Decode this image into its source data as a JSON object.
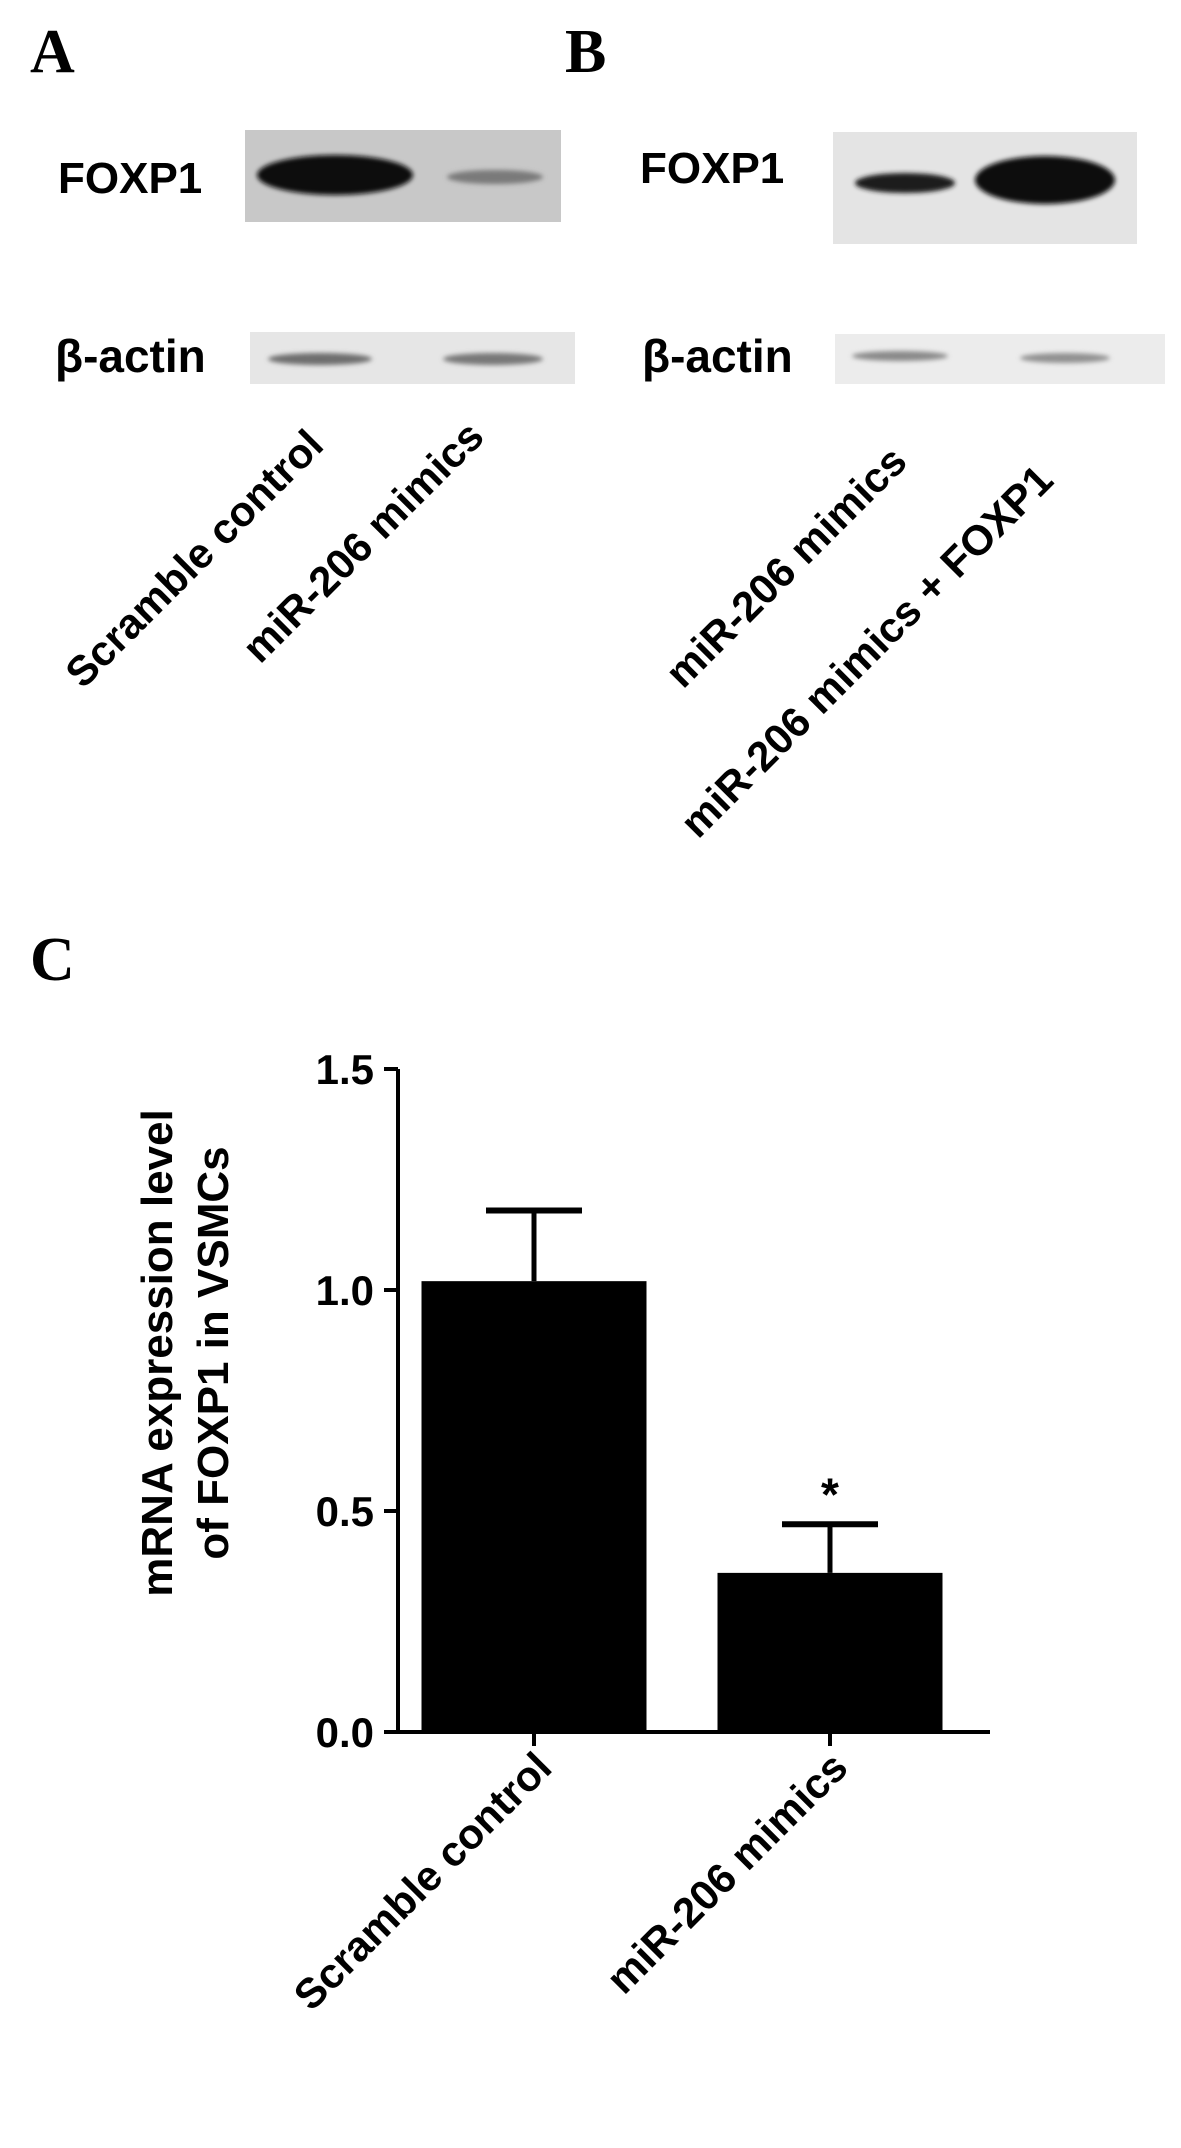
{
  "panels": {
    "a": {
      "letter": "A",
      "blot_labels": [
        "FOXP1",
        "β-actin"
      ],
      "lanes": [
        "Scramble control",
        "miR-206 mimics"
      ]
    },
    "b": {
      "letter": "B",
      "blot_labels": [
        "FOXP1",
        "β-actin"
      ],
      "lanes": [
        "miR-206 mimics",
        "miR-206 mimics + FOXP1"
      ]
    },
    "c": {
      "letter": "C",
      "ylabel_line1": "mRNA expression level",
      "ylabel_line2": "of FOXP1 in  VSMCs"
    }
  },
  "chart_data": {
    "type": "bar",
    "title": "",
    "categories": [
      "Scramble control",
      "miR-206 mimics"
    ],
    "values": [
      1.02,
      0.36
    ],
    "error": [
      0.16,
      0.11
    ],
    "significance": [
      "",
      "*"
    ],
    "xlabel": "",
    "ylabel": "mRNA expression level of FOXP1 in  VSMCs",
    "ylim": [
      0,
      1.5
    ],
    "yticks": [
      0.0,
      0.5,
      1.0,
      1.5
    ],
    "ytick_labels": [
      "0.0",
      "0.5",
      "1.0",
      "1.5"
    ],
    "bar_color": "#000000",
    "grid": false,
    "legend": "none"
  }
}
